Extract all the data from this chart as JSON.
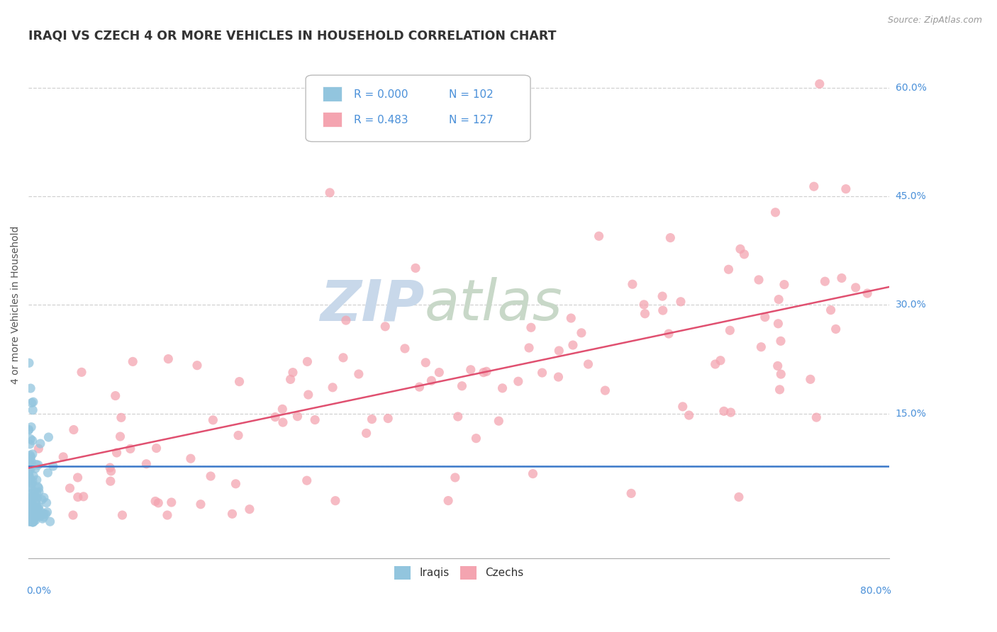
{
  "title": "IRAQI VS CZECH 4 OR MORE VEHICLES IN HOUSEHOLD CORRELATION CHART",
  "source_text": "Source: ZipAtlas.com",
  "ylabel": "4 or more Vehicles in Household",
  "iraqi_R": 0.0,
  "iraqi_N": 102,
  "czech_R": 0.483,
  "czech_N": 127,
  "iraqi_color": "#92c5de",
  "czech_color": "#f4a4b0",
  "iraqi_line_color": "#3a78c9",
  "czech_line_color": "#e05070",
  "legend_label_iraqi": "Iraqis",
  "legend_label_czech": "Czechs",
  "watermark_zip": "ZIP",
  "watermark_atlas": "atlas",
  "watermark_color_zip": "#c8d8ea",
  "watermark_color_atlas": "#c8d8c8",
  "background_color": "#ffffff",
  "grid_color": "#cccccc",
  "title_color": "#333333",
  "axis_label_color": "#555555",
  "tick_label_color": "#4a90d9",
  "xmin": 0.0,
  "xmax": 0.8,
  "ymin": -0.05,
  "ymax": 0.65,
  "ytick_vals": [
    0.0,
    0.15,
    0.3,
    0.45,
    0.6
  ],
  "ytick_labels": [
    "",
    "15.0%",
    "30.0%",
    "45.0%",
    "60.0%"
  ],
  "iraqi_trend_y": 0.078,
  "czech_trend_start": 0.075,
  "czech_trend_end": 0.325
}
